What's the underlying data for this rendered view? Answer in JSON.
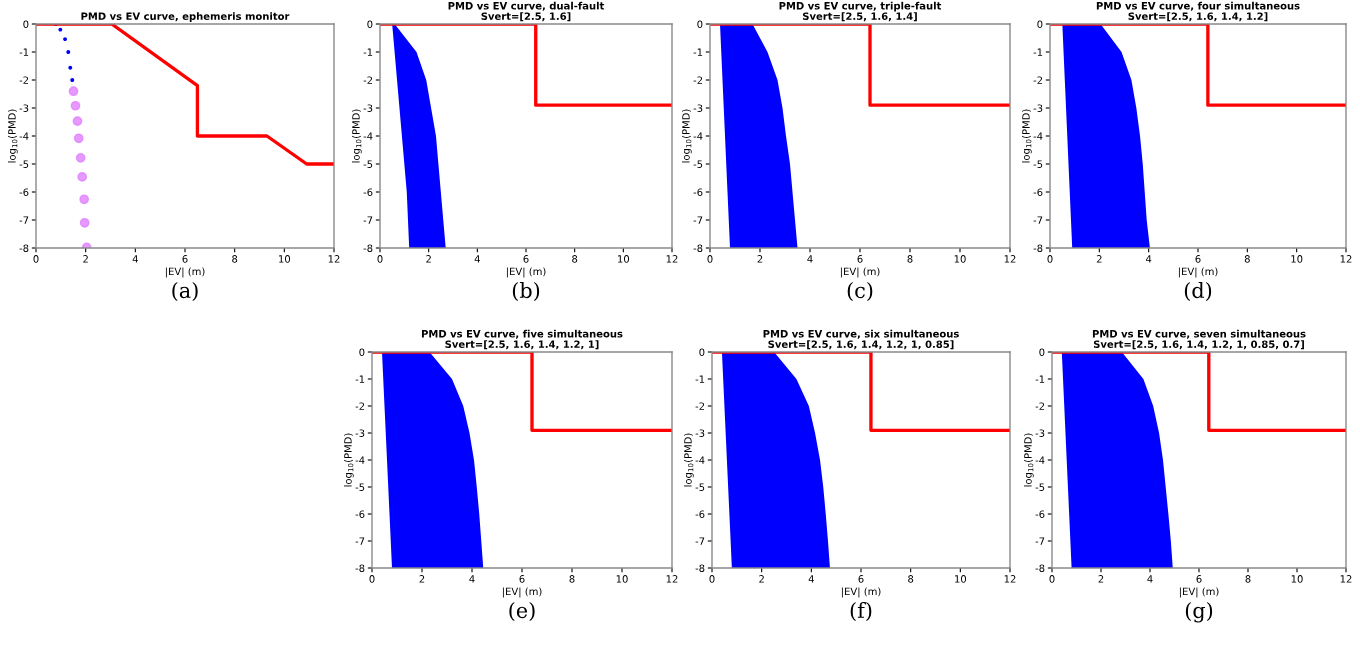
{
  "chart_data": [
    {
      "type": "line",
      "title": "PMD vs EV curve, ephemeris monitor",
      "xlabel": "|EV| (m)",
      "ylabel": "log$_{10}$(PMD)",
      "annotations": [
        "(a)"
      ],
      "xlim": [
        0,
        12
      ],
      "xticks": [
        0,
        2,
        4,
        6,
        8,
        10,
        12
      ],
      "ylim": [
        -8,
        0
      ],
      "yticks": [
        0,
        -1,
        -2,
        -3,
        -4,
        -5,
        -6,
        -7,
        -8
      ],
      "grid": false,
      "series": [
        {
          "color": "#ff0000",
          "x": [
            0,
            3.05,
            6.5,
            6.5,
            9.3,
            10.9,
            12
          ],
          "values": [
            0,
            0,
            -2.2,
            -4,
            -4,
            -5,
            -5
          ]
        },
        {
          "type": "scatter",
          "marker": "point",
          "color": "#0000ff",
          "x": [
            0.8,
            0.98,
            1.17,
            1.3,
            1.38,
            1.46
          ],
          "values": [
            0,
            -0.2,
            -0.54,
            -1.0,
            -1.56,
            -2.0
          ]
        },
        {
          "type": "scatter",
          "marker": "circle",
          "color": "#e080ff",
          "x": [
            1.51,
            1.59,
            1.67,
            1.72,
            1.8,
            1.86,
            1.94,
            1.96,
            2.04
          ],
          "values": [
            -2.4,
            -2.92,
            -3.47,
            -4.08,
            -4.78,
            -5.46,
            -6.26,
            -7.1,
            -7.98
          ]
        }
      ]
    },
    {
      "type": "line",
      "title": "PMD vs EV curve, dual-fault",
      "subtitle": "Svert=[2.5, 1.6]",
      "xlabel": "|EV| (m)",
      "ylabel": "log$_{10}$(PMD)",
      "annotations": [
        "(b)"
      ],
      "xlim": [
        0,
        12
      ],
      "xticks": [
        0,
        2,
        4,
        6,
        8,
        10,
        12
      ],
      "ylim": [
        -8,
        0
      ],
      "yticks": [
        0,
        -1,
        -2,
        -3,
        -4,
        -5,
        -6,
        -7,
        -8
      ],
      "grid": false,
      "series": [
        {
          "type": "area",
          "color": "#0000ff",
          "x": [
            0.5,
            0.7,
            0.9,
            1.1,
            1.2,
            2.7,
            2.6,
            2.5,
            2.4,
            2.3,
            2.1,
            1.9,
            1.5,
            0.6
          ],
          "values": [
            0,
            -2,
            -4,
            -6,
            -8,
            -8,
            -7,
            -6,
            -5,
            -4,
            -3,
            -2,
            -1,
            0
          ]
        },
        {
          "type": "line",
          "color": "#ff0000",
          "x": [
            0,
            6.4,
            6.4,
            12
          ],
          "values": [
            0,
            0,
            -2.9,
            -2.9
          ]
        }
      ]
    },
    {
      "type": "line",
      "title": "PMD vs EV curve, triple-fault",
      "subtitle": "Svert=[2.5, 1.6, 1.4]",
      "xlabel": "|EV| (m)",
      "ylabel": "log$_{10}$(PMD)",
      "annotations": [
        "(c)"
      ],
      "xlim": [
        0,
        12
      ],
      "xticks": [
        0,
        2,
        4,
        6,
        8,
        10,
        12
      ],
      "ylim": [
        -8,
        0
      ],
      "yticks": [
        0,
        -1,
        -2,
        -3,
        -4,
        -5,
        -6,
        -7,
        -8
      ],
      "grid": false,
      "series": [
        {
          "type": "area",
          "color": "#0000ff",
          "x": [
            0.4,
            0.5,
            0.6,
            0.7,
            0.8,
            3.5,
            3.4,
            3.3,
            3.2,
            3.04,
            2.9,
            2.7,
            2.3,
            1.7
          ],
          "values": [
            0,
            -2,
            -4,
            -6,
            -8,
            -8,
            -7,
            -6,
            -5,
            -4,
            -3,
            -2,
            -1,
            0
          ]
        },
        {
          "type": "line",
          "color": "#ff0000",
          "x": [
            0,
            6.4,
            6.4,
            12
          ],
          "values": [
            0,
            0,
            -2.9,
            -2.9
          ]
        }
      ]
    },
    {
      "type": "line",
      "title": "PMD vs EV curve, four simultaneous",
      "subtitle": "Svert=[2.5, 1.6, 1.4, 1.2]",
      "xlabel": "|EV| (m)",
      "ylabel": "log$_{10}$(PMD)",
      "annotations": [
        "(d)"
      ],
      "xlim": [
        0,
        12
      ],
      "xticks": [
        0,
        2,
        4,
        6,
        8,
        10,
        12
      ],
      "ylim": [
        -8,
        0
      ],
      "yticks": [
        0,
        -1,
        -2,
        -3,
        -4,
        -5,
        -6,
        -7,
        -8
      ],
      "grid": false,
      "series": [
        {
          "type": "area",
          "color": "#0000ff",
          "x": [
            0.5,
            0.6,
            0.7,
            0.8,
            0.9,
            4.05,
            3.92,
            3.84,
            3.76,
            3.65,
            3.5,
            3.3,
            2.9,
            2.05
          ],
          "values": [
            0,
            -2,
            -4,
            -6,
            -8,
            -8,
            -7,
            -6,
            -5,
            -4,
            -3,
            -2,
            -1,
            0
          ]
        },
        {
          "type": "line",
          "color": "#ff0000",
          "x": [
            0,
            6.4,
            6.4,
            12
          ],
          "values": [
            0,
            0,
            -2.9,
            -2.9
          ]
        }
      ]
    },
    {
      "type": "line",
      "title": "PMD vs EV curve, five simultaneous",
      "subtitle": "Svert=[2.5, 1.6, 1.4, 1.2, 1]",
      "xlabel": "|EV| (m)",
      "ylabel": "log$_{10}$(PMD)",
      "annotations": [
        "(e)"
      ],
      "xlim": [
        0,
        12
      ],
      "xticks": [
        0,
        2,
        4,
        6,
        8,
        10,
        12
      ],
      "ylim": [
        -8,
        0
      ],
      "yticks": [
        0,
        -1,
        -2,
        -3,
        -4,
        -5,
        -6,
        -7,
        -8
      ],
      "grid": false,
      "series": [
        {
          "type": "area",
          "color": "#0000ff",
          "x": [
            0.4,
            0.5,
            0.6,
            0.7,
            0.8,
            4.45,
            4.37,
            4.29,
            4.19,
            4.08,
            3.9,
            3.65,
            3.2,
            2.3
          ],
          "values": [
            0,
            -2,
            -4,
            -6,
            -8,
            -8,
            -7,
            -6,
            -5,
            -4,
            -3,
            -2,
            -1,
            0
          ]
        },
        {
          "type": "line",
          "color": "#ff0000",
          "x": [
            0,
            6.4,
            6.4,
            12
          ],
          "values": [
            0,
            0,
            -2.9,
            -2.9
          ]
        }
      ]
    },
    {
      "type": "line",
      "title": "PMD vs EV curve, six simultaneous",
      "subtitle": "Svert=[2.5, 1.6, 1.4, 1.2, 1, 0.85]",
      "xlabel": "|EV| (m)",
      "ylabel": "log$_{10}$(PMD)",
      "annotations": [
        "(f)"
      ],
      "xlim": [
        0,
        12
      ],
      "xticks": [
        0,
        2,
        4,
        6,
        8,
        10,
        12
      ],
      "ylim": [
        -8,
        0
      ],
      "yticks": [
        0,
        -1,
        -2,
        -3,
        -4,
        -5,
        -6,
        -7,
        -8
      ],
      "grid": false,
      "series": [
        {
          "type": "area",
          "color": "#0000ff",
          "x": [
            0.4,
            0.5,
            0.6,
            0.7,
            0.8,
            4.75,
            4.67,
            4.58,
            4.48,
            4.35,
            4.15,
            3.9,
            3.4,
            2.5
          ],
          "values": [
            0,
            -2,
            -4,
            -6,
            -8,
            -8,
            -7,
            -6,
            -5,
            -4,
            -3,
            -2,
            -1,
            0
          ]
        },
        {
          "type": "line",
          "color": "#ff0000",
          "x": [
            0,
            6.4,
            6.4,
            12
          ],
          "values": [
            0,
            0,
            -2.9,
            -2.9
          ]
        }
      ]
    },
    {
      "type": "line",
      "title": "PMD vs EV curve, seven simultaneous",
      "subtitle": "Svert=[2.5, 1.6, 1.4, 1.2, 1, 0.85, 0.7]",
      "xlabel": "|EV| (m)",
      "ylabel": "log$_{10}$(PMD)",
      "annotations": [
        "(g)"
      ],
      "xlim": [
        0,
        12
      ],
      "xticks": [
        0,
        2,
        4,
        6,
        8,
        10,
        12
      ],
      "ylim": [
        -8,
        0
      ],
      "yticks": [
        0,
        -1,
        -2,
        -3,
        -4,
        -5,
        -6,
        -7,
        -8
      ],
      "grid": false,
      "series": [
        {
          "type": "area",
          "color": "#0000ff",
          "x": [
            0.4,
            0.5,
            0.6,
            0.7,
            0.8,
            4.93,
            4.85,
            4.75,
            4.64,
            4.53,
            4.37,
            4.13,
            3.73,
            2.85
          ],
          "values": [
            0,
            -2,
            -4,
            -6,
            -8,
            -8,
            -7,
            -6,
            -5,
            -4,
            -3,
            -2,
            -1,
            0
          ]
        },
        {
          "type": "line",
          "color": "#ff0000",
          "x": [
            0,
            6.4,
            6.4,
            12
          ],
          "values": [
            0,
            0,
            -2.9,
            -2.9
          ]
        }
      ]
    }
  ]
}
